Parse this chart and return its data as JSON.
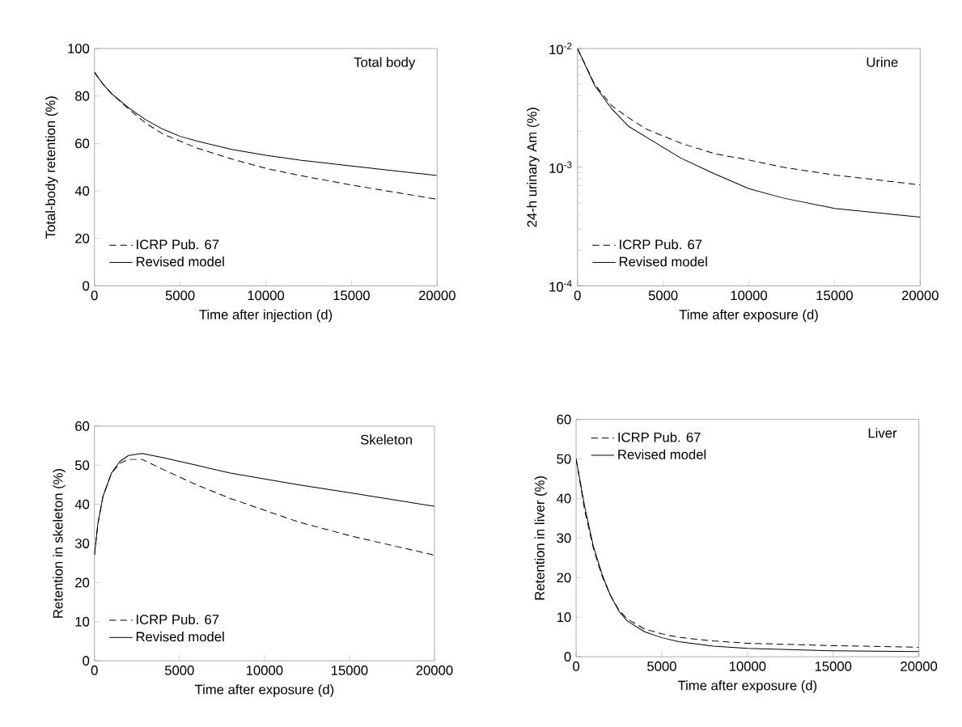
{
  "chart_data": [
    {
      "type": "line",
      "title": "Total body",
      "xlabel": "Time after injection (d)",
      "ylabel": "Total-body retention (%)",
      "x": [
        0,
        500,
        1000,
        2000,
        3000,
        4000,
        5000,
        6000,
        8000,
        10000,
        12000,
        15000,
        20000
      ],
      "series": [
        {
          "name": "ICRP Pub. 67",
          "color": "#000000",
          "line_style": "dashed",
          "values": [
            90,
            85,
            81,
            74.5,
            68.5,
            64,
            61,
            58,
            53.5,
            49.5,
            46.5,
            42.5,
            36.5
          ]
        },
        {
          "name": "Revised model",
          "color": "#000000",
          "line_style": "solid",
          "values": [
            90,
            85,
            81,
            75,
            70,
            66,
            63,
            61,
            57.5,
            55,
            53,
            50.5,
            46.5
          ]
        }
      ],
      "xlim": [
        0,
        20000
      ],
      "ylim": [
        0,
        100
      ],
      "xticks": [
        0,
        5000,
        10000,
        15000,
        20000
      ],
      "yticks": [
        0,
        20,
        40,
        60,
        80,
        100
      ],
      "legend": "bottom left",
      "marker": "none"
    },
    {
      "type": "line",
      "title": "Urine",
      "xlabel": "Time after exposure (d)",
      "ylabel": "24-h urinary Am (%)",
      "x": [
        0,
        1000,
        2000,
        3000,
        4000,
        6000,
        8000,
        10000,
        12000,
        15000,
        20000
      ],
      "series": [
        {
          "name": "ICRP Pub. 67",
          "color": "#000000",
          "line_style": "dashed",
          "values": [
            0.01,
            0.005,
            0.0033,
            0.0026,
            0.0021,
            0.0016,
            0.0013,
            0.00115,
            0.001,
            0.00086,
            0.00071
          ]
        },
        {
          "name": "Revised model",
          "color": "#000000",
          "line_style": "solid",
          "values": [
            0.01,
            0.0049,
            0.0031,
            0.0022,
            0.0018,
            0.0012,
            0.00088,
            0.00066,
            0.00055,
            0.00045,
            0.00038
          ]
        }
      ],
      "xlim": [
        0,
        20000
      ],
      "ylim": [
        0.0001,
        0.01
      ],
      "log": "y",
      "xticks": [
        0,
        5000,
        10000,
        15000,
        20000
      ],
      "yticks": [
        {
          "value": 0.0001,
          "label": "10$^{-4}$"
        },
        {
          "value": 0.001,
          "label": "10$^{-3}$"
        },
        {
          "value": 0.01,
          "label": "10$^{-2}$"
        }
      ],
      "legend": "bottom left",
      "marker": "none"
    },
    {
      "type": "line",
      "title": "Skeleton",
      "xlabel": "Time after exposure (d)",
      "ylabel": "Retention in skeleton (%)",
      "x": [
        0,
        200,
        500,
        1000,
        1500,
        2000,
        2800,
        4000,
        6000,
        8000,
        10000,
        12000,
        15000,
        20000
      ],
      "series": [
        {
          "name": "ICRP Pub. 67",
          "color": "#000000",
          "line_style": "dashed",
          "values": [
            27,
            35,
            42,
            48,
            50.5,
            51.5,
            51.5,
            49,
            45,
            41.5,
            38.5,
            35.5,
            32,
            27
          ]
        },
        {
          "name": "Revised model",
          "color": "#000000",
          "line_style": "solid",
          "values": [
            27,
            35,
            42,
            48,
            51,
            52.5,
            53,
            52,
            50,
            48,
            46.5,
            45,
            43,
            39.5
          ]
        }
      ],
      "xlim": [
        0,
        20000
      ],
      "ylim": [
        0,
        60
      ],
      "xticks": [
        0,
        5000,
        10000,
        15000,
        20000
      ],
      "yticks": [
        0,
        10,
        20,
        30,
        40,
        50,
        60
      ],
      "legend": "bottom left",
      "marker": "none"
    },
    {
      "type": "line",
      "title": "Liver",
      "xlabel": "Time after exposure (d)",
      "ylabel": "Retention in liver (%)",
      "x": [
        0,
        500,
        1000,
        1500,
        2000,
        2500,
        3000,
        4000,
        5000,
        6000,
        8000,
        10000,
        15000,
        20000
      ],
      "series": [
        {
          "name": "ICRP Pub. 67",
          "color": "#000000",
          "line_style": "dashed",
          "values": [
            50,
            37,
            27.5,
            20.5,
            15.5,
            11.8,
            9.5,
            7,
            5.8,
            4.9,
            4,
            3.4,
            2.8,
            2.4
          ]
        },
        {
          "name": "Revised model",
          "color": "#000000",
          "line_style": "solid",
          "values": [
            50,
            38,
            28,
            21,
            15.5,
            11.5,
            9,
            6.3,
            4.8,
            3.8,
            2.7,
            2.1,
            1.5,
            1.3
          ]
        }
      ],
      "xlim": [
        0,
        20000
      ],
      "ylim": [
        0,
        60
      ],
      "xticks": [
        0,
        5000,
        10000,
        15000,
        20000
      ],
      "yticks": [
        0,
        10,
        20,
        30,
        40,
        50,
        60
      ],
      "legend": "top left",
      "marker": "none"
    }
  ]
}
